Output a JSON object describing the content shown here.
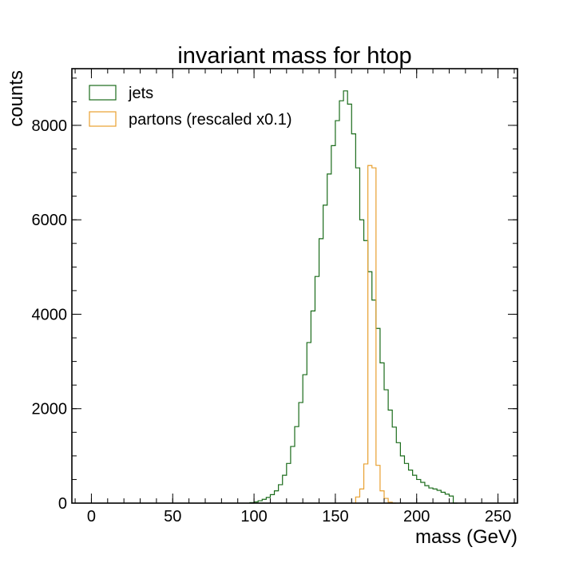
{
  "chart_data": {
    "type": "histogram",
    "title": "invariant mass for htop",
    "xlabel": "mass (GeV)",
    "ylabel": "counts",
    "xlim": [
      -12,
      262
    ],
    "ylim": [
      0,
      9200
    ],
    "bin_width": 2.5,
    "xticks": [
      0,
      50,
      100,
      150,
      200,
      250
    ],
    "xtick_labels": [
      "0",
      "50",
      "100",
      "150",
      "200",
      "250"
    ],
    "yticks": [
      0,
      2000,
      4000,
      6000,
      8000
    ],
    "ytick_labels": [
      "0",
      "2000",
      "4000",
      "6000",
      "8000"
    ],
    "xminor_step": 10,
    "yminor_step": 500,
    "grid": false,
    "legend_position": "top-left",
    "series": [
      {
        "name": "jets",
        "color": "#1a6b1a",
        "bins_start": 97.5,
        "values": [
          10,
          25,
          50,
          80,
          120,
          180,
          260,
          390,
          590,
          840,
          1200,
          1620,
          2130,
          2720,
          3400,
          4070,
          4800,
          5600,
          6310,
          6970,
          7570,
          8100,
          8520,
          8730,
          8450,
          7820,
          7100,
          6000,
          5560,
          4900,
          4300,
          3700,
          2970,
          2400,
          1970,
          1610,
          1280,
          1000,
          840,
          700,
          590,
          500,
          440,
          370,
          320,
          300,
          270,
          230,
          190,
          150,
          0
        ]
      },
      {
        "name": "partons (rescaled x0.1)",
        "color": "#e8a030",
        "bins_start": 162.5,
        "values": [
          130,
          300,
          830,
          7150,
          7100,
          800,
          260,
          100,
          20,
          0
        ]
      }
    ]
  }
}
